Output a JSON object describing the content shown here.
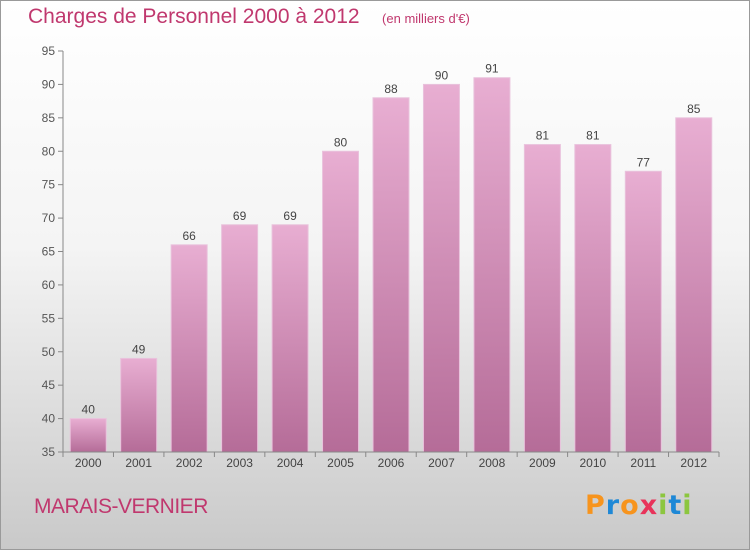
{
  "chart_data": {
    "type": "bar",
    "title": "Charges de Personnel 2000 à 2012",
    "unit_label": "(en milliers d'€)",
    "categories": [
      "2000",
      "2001",
      "2002",
      "2003",
      "2004",
      "2005",
      "2006",
      "2007",
      "2008",
      "2009",
      "2010",
      "2011",
      "2012"
    ],
    "values": [
      40,
      49,
      66,
      69,
      69,
      80,
      88,
      90,
      91,
      81,
      81,
      77,
      85
    ],
    "ylim": [
      35,
      95
    ],
    "yticks": [
      35,
      40,
      45,
      50,
      55,
      60,
      65,
      70,
      75,
      80,
      85,
      90,
      95
    ],
    "grid": false,
    "bar_color": "#d58fb9"
  },
  "commune": "MARAIS-VERNIER",
  "brand": {
    "letters": [
      "P",
      "r",
      "o",
      "x",
      "i",
      "t",
      "i"
    ],
    "colors": [
      "#f7941d",
      "#1e88d6",
      "#f7941d",
      "#e8335a",
      "#8cc63f",
      "#1e88d6",
      "#8cc63f"
    ]
  }
}
